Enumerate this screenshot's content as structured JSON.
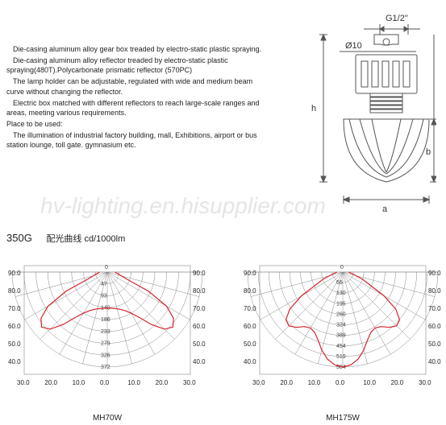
{
  "watermark": "hv-lighting.en.hisupplier.com",
  "description": {
    "p1": "Die-casing aluminum alloy gear box treaded by electro-static plastic spraying.",
    "p2": "Die-casing aluminum alloy reflector treaded by electro-static plastic spraying(480T).Polycarbonate prismatic reflector (570PC)",
    "p3": "The lamp holder can be adjustable, regulated with wide and medium beam curve without changing the reflector.",
    "p4": "Electric box matched with different reflectors to reach large-scale ranges and areas, meeting various requirements.",
    "p5": "Place to be used:",
    "p6": "The illumination of industrial factory building, mall, Exhibitions, airport or bus station lounge, toll gate. gymnasium etc."
  },
  "tech_drawing": {
    "labels": {
      "thread": "G1/2\"",
      "diam": "Ø10",
      "height": "h",
      "width": "a",
      "bowl_h": "b"
    },
    "stroke": "#555",
    "fill": "#fff"
  },
  "chart_header": {
    "main": "350G",
    "sub": "配光曲线 cd/1000lm"
  },
  "charts": {
    "left": {
      "label": "MH70W",
      "radial_values": [
        47,
        93,
        140,
        186,
        233,
        279,
        326,
        372
      ],
      "x_ticks": [
        30.0,
        20.0,
        10.0,
        0.0,
        10.0,
        20.0,
        30.0
      ],
      "y_ticks": [
        90.0,
        80.0,
        70.0,
        60.0,
        50.0,
        40.0
      ],
      "curve_color": "#d62229",
      "grid_color": "#888",
      "curve_points_deg_r": [
        [
          -90,
          0.08
        ],
        [
          -80,
          0.12
        ],
        [
          -70,
          0.22
        ],
        [
          -65,
          0.48
        ],
        [
          -60,
          0.72
        ],
        [
          -55,
          0.85
        ],
        [
          -50,
          0.9
        ],
        [
          -45,
          0.85
        ],
        [
          -40,
          0.72
        ],
        [
          -35,
          0.58
        ],
        [
          -30,
          0.5
        ],
        [
          -25,
          0.45
        ],
        [
          -20,
          0.42
        ],
        [
          -15,
          0.4
        ],
        [
          -10,
          0.39
        ],
        [
          -5,
          0.38
        ],
        [
          0,
          0.38
        ],
        [
          5,
          0.38
        ],
        [
          10,
          0.39
        ],
        [
          15,
          0.4
        ],
        [
          20,
          0.42
        ],
        [
          25,
          0.45
        ],
        [
          30,
          0.5
        ],
        [
          35,
          0.58
        ],
        [
          40,
          0.72
        ],
        [
          45,
          0.85
        ],
        [
          50,
          0.9
        ],
        [
          55,
          0.85
        ],
        [
          60,
          0.72
        ],
        [
          65,
          0.48
        ],
        [
          70,
          0.22
        ],
        [
          80,
          0.12
        ],
        [
          90,
          0.08
        ]
      ]
    },
    "right": {
      "label": "MH175W",
      "radial_values": [
        65,
        130,
        195,
        260,
        324,
        389,
        454,
        519,
        584
      ],
      "x_ticks": [
        30.0,
        20.0,
        10.0,
        0.0,
        10.0,
        20.0,
        30.0
      ],
      "y_ticks": [
        90.0,
        80.0,
        70.0,
        60.0,
        50.0,
        40.0
      ],
      "curve_color": "#d62229",
      "grid_color": "#888",
      "curve_points_deg_r": [
        [
          -90,
          0.06
        ],
        [
          -80,
          0.1
        ],
        [
          -70,
          0.22
        ],
        [
          -60,
          0.5
        ],
        [
          -55,
          0.68
        ],
        [
          -50,
          0.78
        ],
        [
          -45,
          0.8
        ],
        [
          -40,
          0.76
        ],
        [
          -35,
          0.7
        ],
        [
          -30,
          0.68
        ],
        [
          -25,
          0.7
        ],
        [
          -20,
          0.76
        ],
        [
          -15,
          0.85
        ],
        [
          -10,
          0.93
        ],
        [
          -5,
          0.98
        ],
        [
          0,
          1.0
        ],
        [
          5,
          0.98
        ],
        [
          10,
          0.93
        ],
        [
          15,
          0.85
        ],
        [
          20,
          0.76
        ],
        [
          25,
          0.7
        ],
        [
          30,
          0.68
        ],
        [
          35,
          0.7
        ],
        [
          40,
          0.76
        ],
        [
          45,
          0.8
        ],
        [
          50,
          0.78
        ],
        [
          55,
          0.68
        ],
        [
          60,
          0.5
        ],
        [
          70,
          0.22
        ],
        [
          80,
          0.1
        ],
        [
          90,
          0.06
        ]
      ]
    }
  }
}
